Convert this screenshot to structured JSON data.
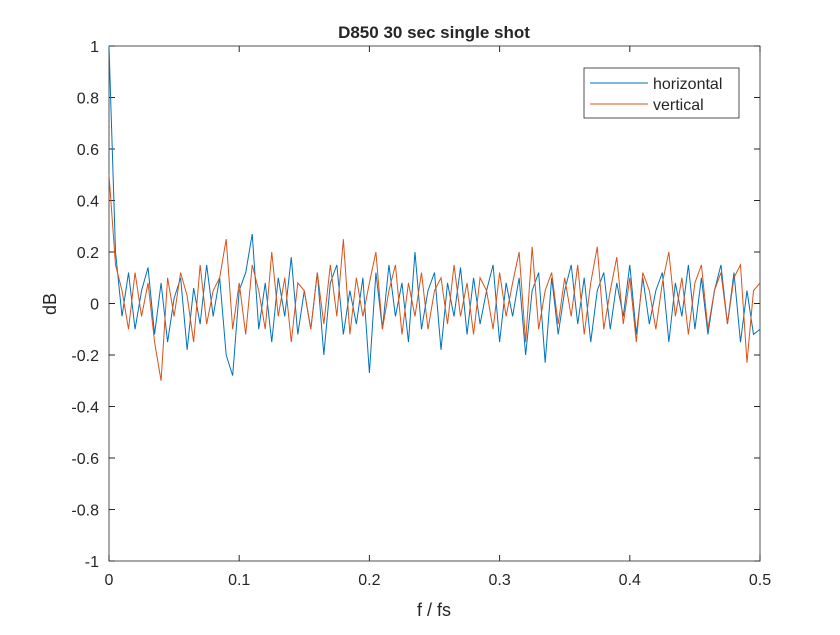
{
  "chart_data": {
    "type": "line",
    "title": "D850 30 sec single shot",
    "xlabel": "f / fs",
    "ylabel": "dB",
    "x": [
      0,
      0.005,
      0.01,
      0.015,
      0.02,
      0.025,
      0.03,
      0.035,
      0.04,
      0.045,
      0.05,
      0.055,
      0.06,
      0.065,
      0.07,
      0.075,
      0.08,
      0.085,
      0.09,
      0.095,
      0.1,
      0.105,
      0.11,
      0.115,
      0.12,
      0.125,
      0.13,
      0.135,
      0.14,
      0.145,
      0.15,
      0.155,
      0.16,
      0.165,
      0.17,
      0.175,
      0.18,
      0.185,
      0.19,
      0.195,
      0.2,
      0.205,
      0.21,
      0.215,
      0.22,
      0.225,
      0.23,
      0.235,
      0.24,
      0.245,
      0.25,
      0.255,
      0.26,
      0.265,
      0.27,
      0.275,
      0.28,
      0.285,
      0.29,
      0.295,
      0.3,
      0.305,
      0.31,
      0.315,
      0.32,
      0.325,
      0.33,
      0.335,
      0.34,
      0.345,
      0.35,
      0.355,
      0.36,
      0.365,
      0.37,
      0.375,
      0.38,
      0.385,
      0.39,
      0.395,
      0.4,
      0.405,
      0.41,
      0.415,
      0.42,
      0.425,
      0.43,
      0.435,
      0.44,
      0.445,
      0.45,
      0.455,
      0.46,
      0.465,
      0.47,
      0.475,
      0.48,
      0.485,
      0.49,
      0.495,
      0.5
    ],
    "series": [
      {
        "name": "horizontal",
        "color": "#0072bd",
        "values": [
          1,
          0.2,
          -0.05,
          0.12,
          -0.1,
          0.05,
          0.14,
          -0.12,
          0.08,
          -0.15,
          0.02,
          0.1,
          -0.18,
          0.06,
          -0.08,
          0.15,
          -0.05,
          0.1,
          -0.2,
          -0.28,
          0.05,
          0.12,
          0.27,
          -0.1,
          0.08,
          -0.15,
          0.1,
          -0.05,
          0.18,
          -0.12,
          0.05,
          -0.1,
          0.12,
          -0.2,
          0.08,
          0.15,
          -0.12,
          0.05,
          -0.08,
          0.1,
          -0.27,
          0.12,
          -0.1,
          0.15,
          -0.05,
          0.08,
          -0.15,
          0.2,
          -0.1,
          0.05,
          0.12,
          -0.18,
          0.08,
          -0.05,
          0.14,
          -0.12,
          0.1,
          -0.08,
          0.05,
          0.15,
          -0.15,
          0.08,
          -0.05,
          0.1,
          -0.2,
          0.05,
          0.12,
          -0.23,
          0.1,
          -0.12,
          0.05,
          0.15,
          -0.08,
          0.1,
          -0.15,
          0.05,
          0.12,
          -0.1,
          0.08,
          -0.05,
          0.15,
          -0.12,
          0.1,
          -0.08,
          0.05,
          0.12,
          -0.15,
          0.08,
          -0.05,
          0.15,
          -0.1,
          0.1,
          -0.12,
          0.05,
          0.15,
          -0.08,
          0.12,
          -0.15,
          0.05,
          -0.12,
          -0.1
        ]
      },
      {
        "name": "vertical",
        "color": "#d95319",
        "values": [
          0.5,
          0.15,
          0.05,
          -0.1,
          0.12,
          -0.05,
          0.08,
          -0.15,
          -0.3,
          0.1,
          -0.05,
          0.12,
          0.03,
          -0.15,
          0.15,
          -0.08,
          0.05,
          0.1,
          0.25,
          -0.1,
          0.08,
          -0.12,
          0.15,
          0.05,
          -0.1,
          0.2,
          -0.05,
          0.1,
          -0.15,
          0.08,
          0.05,
          -0.1,
          0.12,
          -0.08,
          0.15,
          -0.05,
          0.25,
          -0.12,
          0.1,
          -0.05,
          0.08,
          0.2,
          -0.1,
          0.05,
          0.15,
          -0.12,
          0.08,
          -0.05,
          0.12,
          -0.1,
          0.05,
          0.1,
          -0.08,
          0.15,
          -0.05,
          0.08,
          -0.12,
          0.1,
          0.05,
          -0.1,
          0.12,
          -0.05,
          0.08,
          0.2,
          -0.15,
          0.22,
          -0.1,
          0.05,
          0.12,
          -0.08,
          0.1,
          -0.05,
          0.15,
          -0.12,
          0.08,
          0.22,
          -0.1,
          0.05,
          0.18,
          -0.08,
          0.1,
          -0.15,
          0.12,
          0.05,
          -0.1,
          0.08,
          0.2,
          -0.05,
          0.1,
          -0.12,
          0.08,
          0.15,
          -0.1,
          0.05,
          0.12,
          -0.08,
          0.1,
          0.15,
          -0.23,
          0.05,
          0.08
        ]
      }
    ],
    "xlim": [
      0,
      0.5
    ],
    "xticks": [
      0,
      0.1,
      0.2,
      0.3,
      0.4,
      0.5
    ],
    "ylim": [
      -1,
      1
    ],
    "yticks": [
      -1,
      -0.8,
      -0.6,
      -0.4,
      -0.2,
      0,
      0.2,
      0.4,
      0.6,
      0.8,
      1
    ],
    "legend": "top-right"
  }
}
